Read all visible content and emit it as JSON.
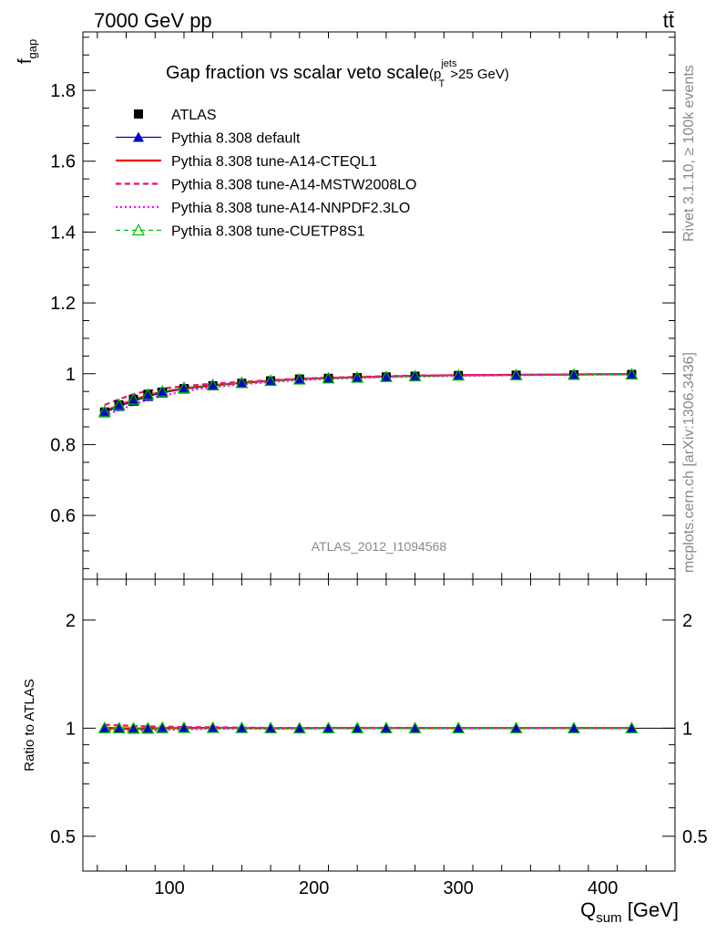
{
  "header": {
    "energy_label": "7000 GeV pp",
    "process_label": "tt̄",
    "analysis_id": "ATLAS_2012_I1094568",
    "side_rivet": "Rivet 3.1.10, ≥ 100k events",
    "side_mcplots": "mcplots.cern.ch [arXiv:1306.3436]"
  },
  "colors": {
    "data": "#000000",
    "default": "#0000cc",
    "cteql1": "#ff0000",
    "mstw": "#ee1177",
    "nnpdf": "#ff00ff",
    "cuetp8s1": "#00bb00",
    "muted": "#888888"
  },
  "chart_data": [
    {
      "type": "line",
      "panel": "main",
      "title_main": "Gap fraction vs scalar veto scale",
      "title_sub_open": "(p",
      "title_sub_sup": "jets",
      "title_sub_sub": "T",
      "title_sub_close": ">25 GeV)",
      "ylabel_main": "f",
      "ylabel_sub": "gap",
      "xlim": [
        40,
        450
      ],
      "ylim": [
        0.42,
        1.965
      ],
      "yticks": [
        0.6,
        0.8,
        1.0,
        1.2,
        1.4,
        1.6,
        1.8
      ],
      "ytick_labels": [
        "0.6",
        "0.8",
        "1",
        "1.2",
        "1.4",
        "1.6",
        "1.8"
      ],
      "x": [
        55,
        65,
        75,
        85,
        95,
        110,
        130,
        150,
        170,
        190,
        210,
        230,
        250,
        270,
        300,
        340,
        380,
        420
      ],
      "series": [
        {
          "name": "ATLAS",
          "key": "data",
          "marker": "square",
          "values": [
            0.892,
            0.912,
            0.928,
            0.942,
            0.948,
            0.958,
            0.966,
            0.973,
            0.98,
            0.985,
            0.987,
            0.989,
            0.991,
            0.993,
            0.995,
            0.996,
            0.997,
            0.998
          ]
        },
        {
          "name": "Pythia 8.308 default",
          "key": "default",
          "marker": "triangle-filled",
          "values": [
            0.89,
            0.908,
            0.922,
            0.936,
            0.946,
            0.957,
            0.966,
            0.973,
            0.979,
            0.984,
            0.987,
            0.989,
            0.991,
            0.993,
            0.995,
            0.996,
            0.997,
            0.998
          ]
        },
        {
          "name": "Pythia 8.308 tune-A14-CTEQL1",
          "key": "cteql1",
          "marker": "none",
          "values": [
            0.894,
            0.912,
            0.926,
            0.94,
            0.949,
            0.959,
            0.968,
            0.974,
            0.98,
            0.985,
            0.988,
            0.99,
            0.992,
            0.994,
            0.996,
            0.997,
            0.998,
            0.999
          ]
        },
        {
          "name": "Pythia 8.308 tune-A14-MSTW2008LO",
          "key": "mstw",
          "marker": "none",
          "values": [
            0.912,
            0.928,
            0.942,
            0.952,
            0.958,
            0.965,
            0.972,
            0.977,
            0.982,
            0.986,
            0.989,
            0.991,
            0.993,
            0.995,
            0.996,
            0.997,
            0.998,
            0.999
          ]
        },
        {
          "name": "Pythia 8.308 tune-A14-NNPDF2.3LO",
          "key": "nnpdf",
          "marker": "none",
          "values": [
            0.882,
            0.898,
            0.913,
            0.927,
            0.938,
            0.951,
            0.962,
            0.97,
            0.977,
            0.982,
            0.986,
            0.988,
            0.991,
            0.992,
            0.994,
            0.996,
            0.997,
            0.998
          ]
        },
        {
          "name": "Pythia 8.308 tune-CUETP8S1",
          "key": "cuetp8s1",
          "marker": "triangle-open",
          "values": [
            0.893,
            0.912,
            0.927,
            0.941,
            0.95,
            0.96,
            0.968,
            0.974,
            0.98,
            0.984,
            0.987,
            0.989,
            0.991,
            0.993,
            0.995,
            0.996,
            0.997,
            0.998
          ]
        }
      ]
    },
    {
      "type": "line",
      "panel": "ratio",
      "ylabel": "Ratio to ATLAS",
      "xlabel_main": "Q",
      "xlabel_sub": "sum",
      "xlabel_unit": " [GeV]",
      "xlim": [
        40,
        450
      ],
      "xticks": [
        100,
        200,
        300,
        400
      ],
      "xtick_labels": [
        "100",
        "200",
        "300",
        "400"
      ],
      "ylim": [
        0.4,
        2.6
      ],
      "log_y": true,
      "yticks": [
        0.5,
        1,
        2
      ],
      "ytick_labels": [
        "0.5",
        "1",
        "2"
      ],
      "band_values": [
        0.025,
        0.02,
        0.016,
        0.013,
        0.01,
        0.008,
        0.006,
        0.005,
        0.004,
        0.003,
        0.003,
        0.003,
        0.002,
        0.002,
        0.002,
        0.002,
        0.002,
        0.002
      ],
      "series": [
        {
          "key": "default",
          "marker": "triangle-filled",
          "values": [
            0.998,
            0.996,
            0.994,
            0.994,
            0.998,
            0.999,
            1.0,
            1.0,
            0.999,
            0.999,
            1.0,
            1.0,
            1.0,
            1.0,
            1.0,
            1.0,
            1.0,
            1.0
          ]
        },
        {
          "key": "cteql1",
          "marker": "none",
          "values": [
            1.002,
            1.0,
            0.998,
            0.998,
            1.001,
            1.001,
            1.002,
            1.001,
            1.0,
            1.0,
            1.001,
            1.001,
            1.001,
            1.001,
            1.001,
            1.001,
            1.001,
            1.001
          ]
        },
        {
          "key": "mstw",
          "marker": "none",
          "values": [
            1.022,
            1.018,
            1.015,
            1.011,
            1.011,
            1.007,
            1.006,
            1.004,
            1.002,
            1.001,
            1.002,
            1.002,
            1.002,
            1.002,
            1.001,
            1.001,
            1.001,
            1.001
          ]
        },
        {
          "key": "nnpdf",
          "marker": "none",
          "values": [
            0.989,
            0.985,
            0.984,
            0.984,
            0.989,
            0.993,
            0.996,
            0.997,
            0.997,
            0.997,
            0.999,
            0.999,
            1.0,
            0.999,
            0.999,
            1.0,
            1.0,
            1.0
          ]
        },
        {
          "key": "cuetp8s1",
          "marker": "triangle-open",
          "values": [
            1.001,
            1.0,
            0.999,
            0.999,
            1.002,
            1.002,
            1.002,
            1.001,
            1.0,
            0.999,
            1.0,
            1.0,
            1.0,
            1.0,
            1.0,
            1.0,
            1.0,
            1.0
          ]
        }
      ]
    }
  ]
}
